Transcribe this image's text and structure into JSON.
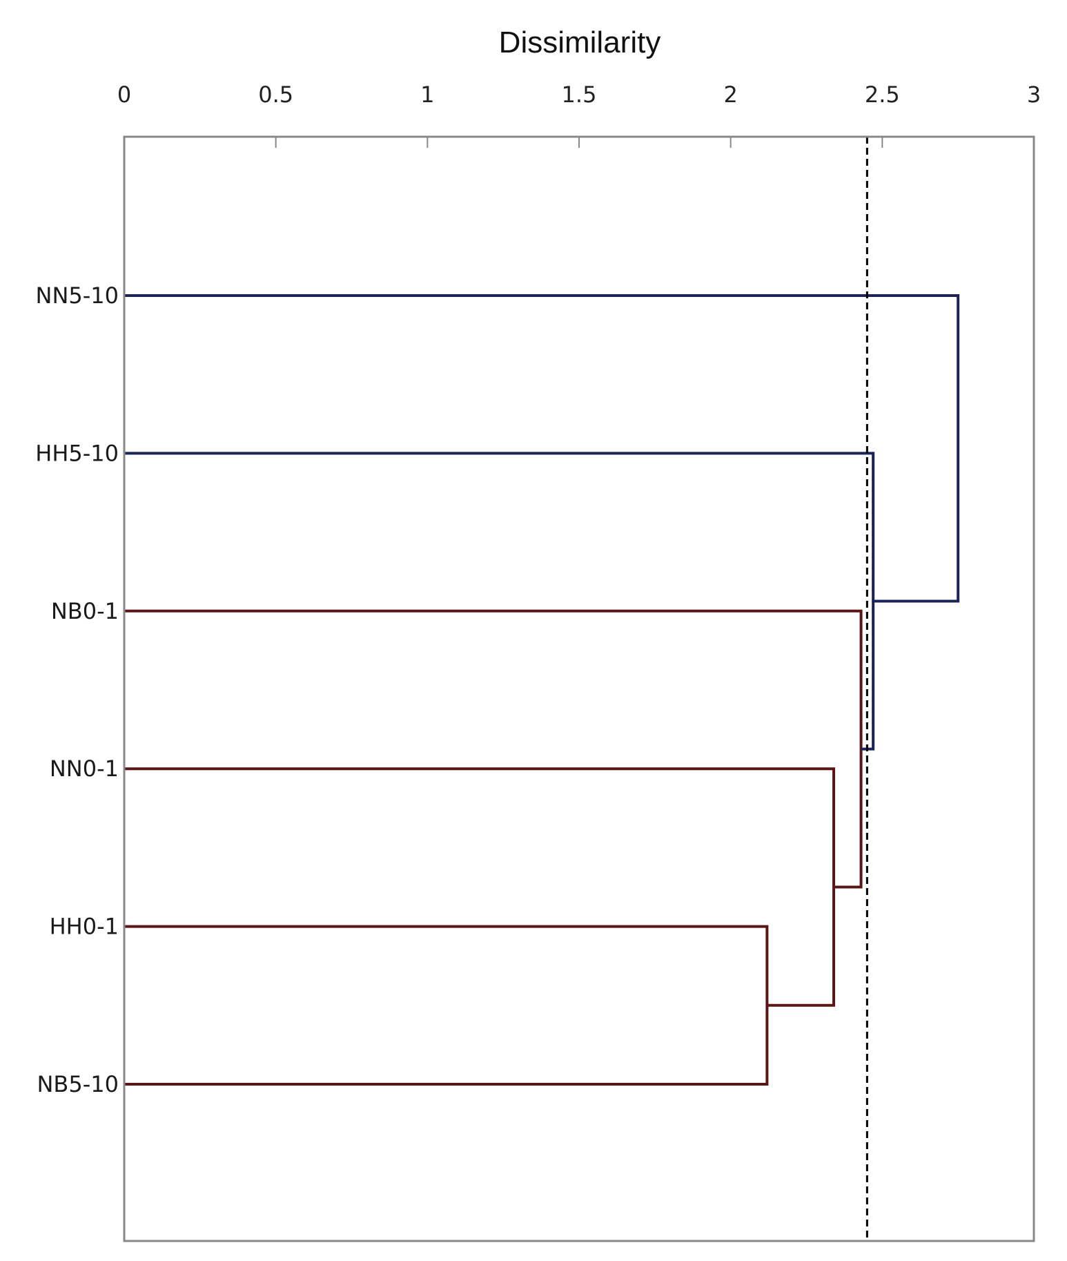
{
  "chart_data": {
    "type": "dendrogram",
    "xlabel": "Dissimilarity",
    "xlim": [
      0,
      3
    ],
    "xticks": [
      "0",
      "0.5",
      "1",
      "1.5",
      "2",
      "2.5",
      "3"
    ],
    "xtick_values": [
      0,
      0.5,
      1,
      1.5,
      2,
      2.5,
      3
    ],
    "axis_position": "top",
    "grid": false,
    "leaves": [
      "NN5-10",
      "HH5-10",
      "NB0-1",
      "NN0-1",
      "HH0-1",
      "NB5-10"
    ],
    "merges": [
      {
        "id": "m1",
        "children": [
          "HH0-1",
          "NB5-10"
        ],
        "height": 2.12,
        "cluster": "red"
      },
      {
        "id": "m2",
        "children": [
          "NN0-1",
          "m1"
        ],
        "height": 2.34,
        "cluster": "red"
      },
      {
        "id": "m3",
        "children": [
          "NB0-1",
          "m2"
        ],
        "height": 2.43,
        "cluster": "red"
      },
      {
        "id": "m4",
        "children": [
          "HH5-10",
          "m3"
        ],
        "height": 2.47,
        "cluster": "blue"
      },
      {
        "id": "m5",
        "children": [
          "NN5-10",
          "m4"
        ],
        "height": 2.75,
        "cluster": "blue"
      }
    ],
    "leaf_clusters": {
      "NN5-10": "blue",
      "HH5-10": "blue",
      "NB0-1": "red",
      "NN0-1": "red",
      "HH0-1": "red",
      "NB5-10": "red"
    },
    "cutoff": 2.45,
    "cutoff_style": "dashed",
    "colors": {
      "blue": "#1c2356",
      "red": "#5a1616",
      "cutoff": "#000000",
      "frame": "#888888"
    }
  }
}
